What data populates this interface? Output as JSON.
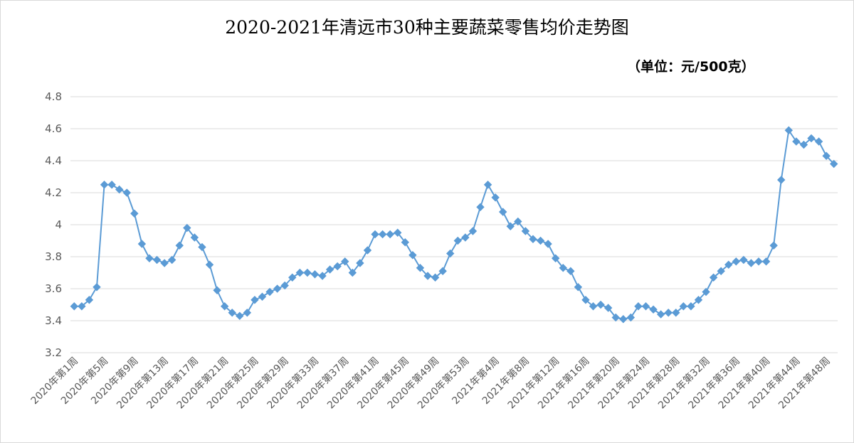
{
  "chart_data": {
    "type": "line",
    "title": "2020-2021年清远市30种主要蔬菜零售均价走势图",
    "unit_label": "（单位：元/500克）",
    "ylim": [
      3.2,
      4.8
    ],
    "yticks": [
      "3.2",
      "3.4",
      "3.6",
      "3.8",
      "4",
      "4.2",
      "4.4",
      "4.6",
      "4.8"
    ],
    "grid": true,
    "legend": "none",
    "line_color": "#5B9BD5",
    "x_labels": [
      "2020年第1周",
      "2020年第5周",
      "2020年第9周",
      "2020年第13周",
      "2020年第17周",
      "2020年第21周",
      "2020年第25周",
      "2020年第29周",
      "2020年第33周",
      "2020年第37周",
      "2020年第41周",
      "2020年第45周",
      "2020年第49周",
      "2020年第53周",
      "2021年第4周",
      "2021年第8周",
      "2021年第12周",
      "2021年第16周",
      "2021年第20周",
      "2021年第24周",
      "2021年第28周",
      "2021年第32周",
      "2021年第36周",
      "2021年第40周",
      "2021年第44周",
      "2021年第48周"
    ],
    "series": [
      {
        "values": [
          3.49,
          3.49,
          3.53,
          3.61,
          4.25,
          4.25,
          4.22,
          4.2,
          4.07,
          3.88,
          3.79,
          3.78,
          3.76,
          3.78,
          3.87,
          3.98,
          3.92,
          3.86,
          3.75,
          3.59,
          3.49,
          3.45,
          3.43,
          3.45,
          3.53,
          3.55,
          3.58,
          3.6,
          3.62,
          3.67,
          3.7,
          3.7,
          3.69,
          3.68,
          3.72,
          3.74,
          3.77,
          3.7,
          3.76,
          3.84,
          3.94,
          3.94,
          3.94,
          3.95,
          3.89,
          3.81,
          3.73,
          3.68,
          3.67,
          3.71,
          3.82,
          3.9,
          3.92,
          3.96,
          4.11,
          4.25,
          4.17,
          4.08,
          3.99,
          4.02,
          3.96,
          3.91,
          3.9,
          3.88,
          3.79,
          3.73,
          3.71,
          3.61,
          3.53,
          3.49,
          3.5,
          3.48,
          3.42,
          3.41,
          3.42,
          3.49,
          3.49,
          3.47,
          3.44,
          3.45,
          3.45,
          3.49,
          3.49,
          3.53,
          3.58,
          3.67,
          3.71,
          3.75,
          3.77,
          3.78,
          3.76,
          3.77,
          3.77,
          3.87,
          4.28,
          4.59,
          4.52,
          4.5,
          4.54,
          4.52,
          4.43,
          4.38
        ]
      }
    ]
  }
}
